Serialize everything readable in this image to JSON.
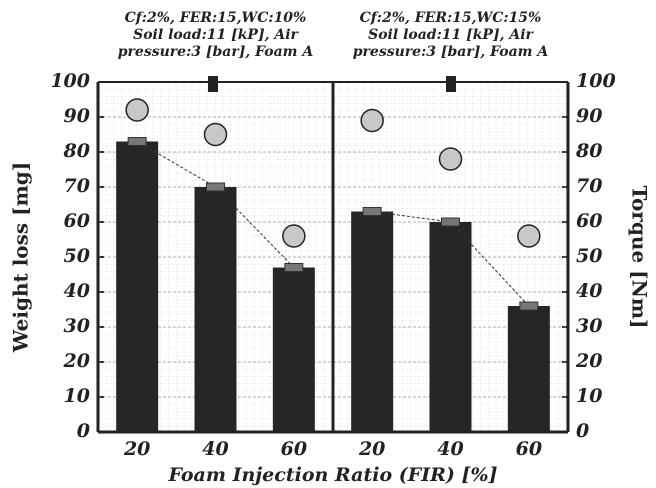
{
  "chart_data": [
    {
      "type": "bar",
      "title": [
        "Cf:2%, FER:15,WC:10%",
        "Soil load:11 [kP], Air",
        "pressure:3 [bar], Foam A"
      ],
      "categories": [
        "20",
        "40",
        "60"
      ],
      "series": [
        {
          "values": [
            83,
            70,
            47
          ],
          "color": "#262626"
        },
        {
          "values": [
            92,
            85,
            56
          ],
          "color": "#c8c8c8",
          "axis": "y2"
        }
      ],
      "ylim": [
        0,
        100
      ],
      "yticks": [
        0,
        10,
        20,
        30,
        40,
        50,
        60,
        70,
        80,
        90,
        100
      ],
      "y2lim": [
        0,
        100
      ],
      "ylabel": "Weight loss [mg]",
      "xlabel": "Foam Injection Ratio (FIR) [%]",
      "grid": true
    },
    {
      "type": "bar",
      "title": [
        "Cf:2%, FER:15,WC:15%",
        "Soil load:11 [kP], Air",
        "pressure:3 [bar], Foam A"
      ],
      "categories": [
        "20",
        "40",
        "60"
      ],
      "series": [
        {
          "values": [
            63,
            60,
            36
          ],
          "color": "#262626"
        },
        {
          "values": [
            89,
            78,
            56
          ],
          "color": "#c8c8c8",
          "axis": "y2"
        }
      ],
      "ylim": [
        0,
        100
      ],
      "y2lim": [
        0,
        100
      ],
      "y2ticks": [
        0,
        10,
        20,
        30,
        40,
        50,
        60,
        70,
        80,
        90,
        100
      ],
      "y2label": "Torque [Nm]",
      "grid": true
    }
  ]
}
